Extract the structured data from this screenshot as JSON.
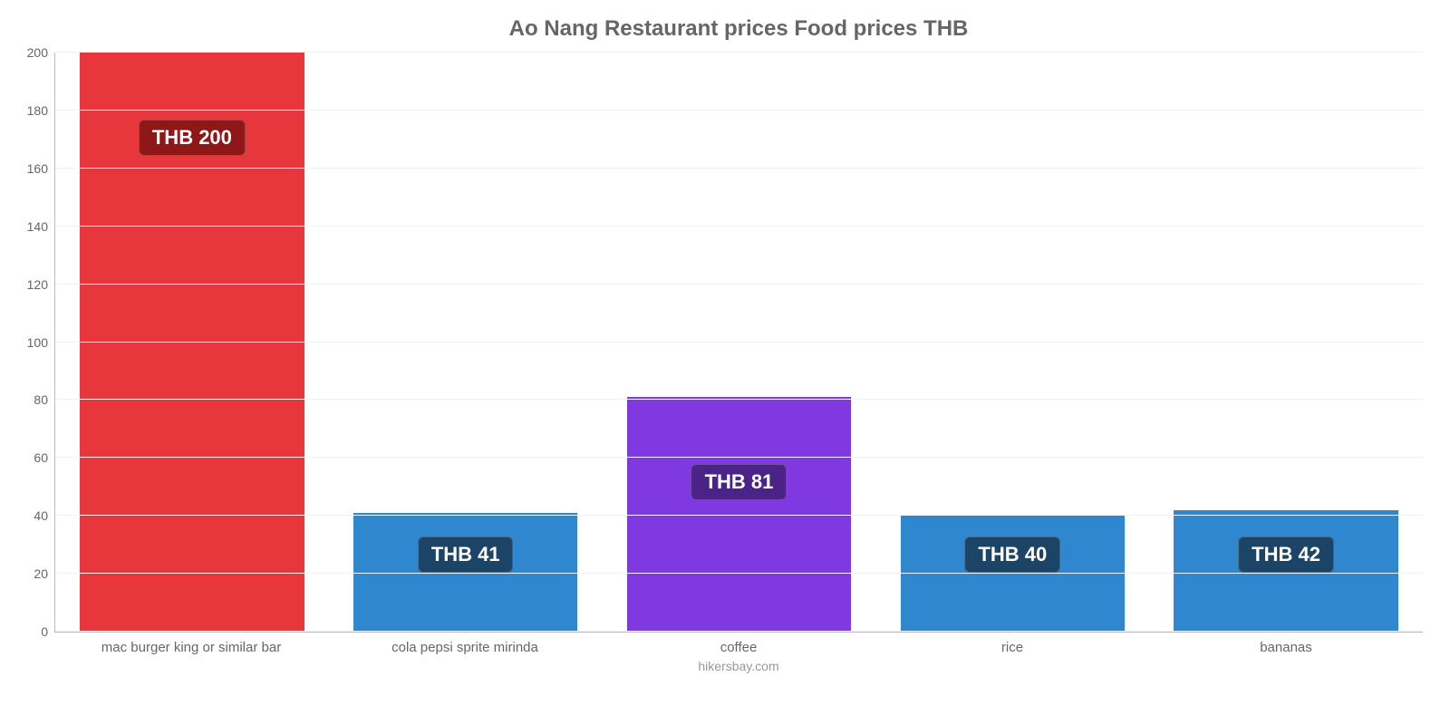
{
  "chart": {
    "type": "bar",
    "title": "Ao Nang Restaurant prices Food prices THB",
    "title_fontsize": 24,
    "title_color": "#666666",
    "background_color": "#ffffff",
    "grid_color": "#f2f2f2",
    "axis_color": "#bbbbbb",
    "ylim": [
      0,
      200
    ],
    "ytick_step": 20,
    "yticks": [
      0,
      20,
      40,
      60,
      80,
      100,
      120,
      140,
      160,
      180,
      200
    ],
    "bar_width": 0.82,
    "currency_prefix": "THB ",
    "categories": [
      "mac burger king or similar bar",
      "cola pepsi sprite mirinda",
      "coffee",
      "rice",
      "bananas"
    ],
    "values": [
      200,
      41,
      81,
      40,
      42
    ],
    "bar_colors": [
      "#e7373c",
      "#2f87d0",
      "#8038e0",
      "#2f87d0",
      "#2f87d0"
    ],
    "label_bg_colors": [
      "#8f1717",
      "#1c4467",
      "#4a2288",
      "#1c4467",
      "#1c4467"
    ],
    "label_fontsize": 22,
    "xlabel_fontsize": 15,
    "credit": "hikersbay.com"
  }
}
